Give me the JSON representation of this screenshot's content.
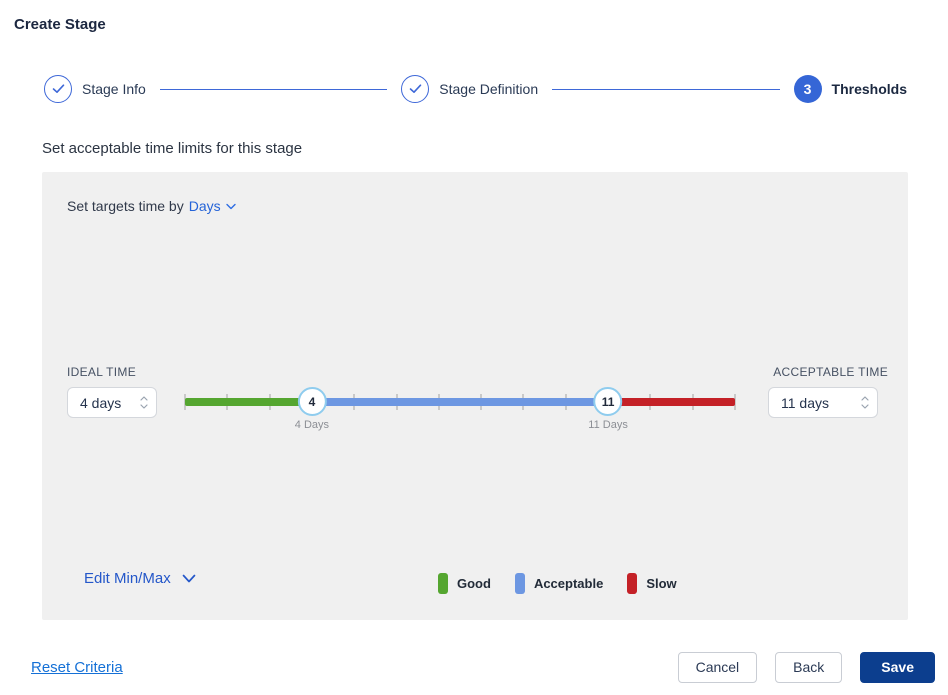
{
  "page": {
    "title": "Create Stage"
  },
  "stepper": {
    "steps": [
      {
        "label": "Stage Info",
        "state": "complete"
      },
      {
        "label": "Stage Definition",
        "state": "complete"
      },
      {
        "label": "Thresholds",
        "state": "current",
        "number": "3"
      }
    ]
  },
  "section": {
    "heading": "Set acceptable time limits for this stage"
  },
  "panel": {
    "targets_label": "Set targets time by",
    "unit_dropdown": {
      "value": "Days"
    },
    "ideal": {
      "label": "IDEAL TIME",
      "value": "4 days"
    },
    "acceptable": {
      "label": "ACCEPTABLE TIME",
      "value": "11 days"
    },
    "slider": {
      "min": 1,
      "max": 14,
      "handles": [
        {
          "value": "4",
          "caption": "4 Days"
        },
        {
          "value": "11",
          "caption": "11 Days"
        }
      ]
    },
    "edit_minmax_label": "Edit Min/Max",
    "legend": [
      {
        "label": "Good",
        "color": "#55a630"
      },
      {
        "label": "Acceptable",
        "color": "#6d97e2"
      },
      {
        "label": "Slow",
        "color": "#c42127"
      }
    ]
  },
  "footer": {
    "reset_label": "Reset Criteria",
    "cancel_label": "Cancel",
    "back_label": "Back",
    "save_label": "Save"
  },
  "colors": {
    "accent_blue": "#3566d6",
    "link_blue": "#2463d8",
    "save_navy": "#0c3e8e",
    "panel_bg": "#f0f0f0",
    "handle_border": "#8fccee"
  }
}
